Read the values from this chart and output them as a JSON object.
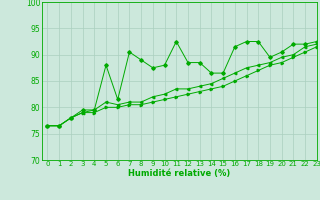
{
  "xlabel": "Humidité relative (%)",
  "xlim": [
    -0.5,
    23
  ],
  "ylim": [
    70,
    100
  ],
  "yticks": [
    70,
    75,
    80,
    85,
    90,
    95,
    100
  ],
  "xticks": [
    0,
    1,
    2,
    3,
    4,
    5,
    6,
    7,
    8,
    9,
    10,
    11,
    12,
    13,
    14,
    15,
    16,
    17,
    18,
    19,
    20,
    21,
    22,
    23
  ],
  "background_color": "#cce8dc",
  "grid_color": "#aacfbf",
  "line_color": "#00aa00",
  "series1_y": [
    76.5,
    76.5,
    78.0,
    79.5,
    79.5,
    88.0,
    81.5,
    90.5,
    89.0,
    87.5,
    88.0,
    92.5,
    88.5,
    88.5,
    86.5,
    86.5,
    91.5,
    92.5,
    92.5,
    89.5,
    90.5,
    92.0,
    92.0,
    92.5
  ],
  "series2_y": [
    76.5,
    76.5,
    78.0,
    79.0,
    79.5,
    81.0,
    80.5,
    81.0,
    81.0,
    82.0,
    82.5,
    83.5,
    83.5,
    84.0,
    84.5,
    85.5,
    86.5,
    87.5,
    88.0,
    88.5,
    89.5,
    90.0,
    91.5,
    92.0
  ],
  "series3_y": [
    76.5,
    76.5,
    78.0,
    79.0,
    79.0,
    80.0,
    80.0,
    80.5,
    80.5,
    81.0,
    81.5,
    82.0,
    82.5,
    83.0,
    83.5,
    84.0,
    85.0,
    86.0,
    87.0,
    88.0,
    88.5,
    89.5,
    90.5,
    91.5
  ],
  "tick_fontsize": 5.5,
  "xlabel_fontsize": 6,
  "lw": 0.7,
  "ms": 1.8
}
